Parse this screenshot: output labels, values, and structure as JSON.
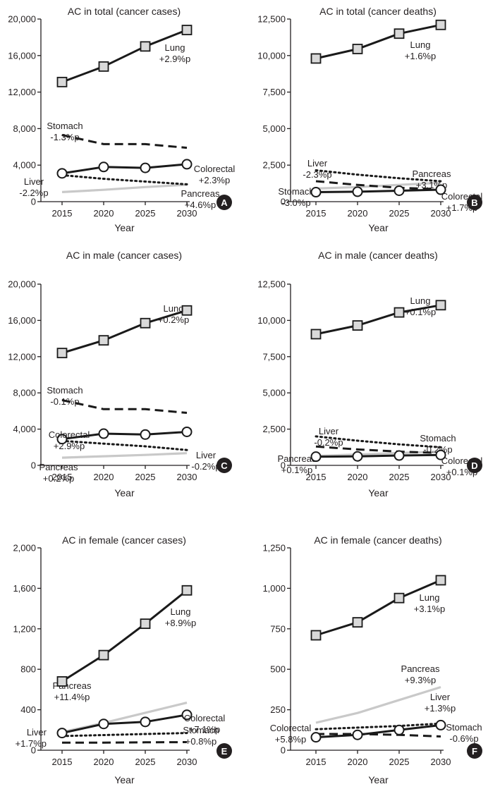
{
  "chart_data": [
    {
      "panel": "A",
      "type": "line",
      "title": "AC in total (cancer cases)",
      "xlabel": "Year",
      "ylabel": "",
      "x": [
        2015,
        2020,
        2025,
        2030
      ],
      "ylim": [
        0,
        20000
      ],
      "yticks": [
        0,
        4000,
        8000,
        12000,
        16000,
        20000
      ],
      "ytick_labels": [
        "0",
        "4,000",
        "8,000",
        "12,000",
        "16,000",
        "20,000"
      ],
      "series": [
        {
          "name": "Lung",
          "change": "+2.9%p",
          "style": "square",
          "values": [
            13100,
            14800,
            17000,
            18800
          ]
        },
        {
          "name": "Stomach",
          "change": "-1.3%p",
          "style": "dashed",
          "values": [
            7300,
            6300,
            6300,
            5900
          ]
        },
        {
          "name": "Colorectal",
          "change": "+2.3%p",
          "style": "circle",
          "values": [
            3100,
            3800,
            3700,
            4100
          ]
        },
        {
          "name": "Liver",
          "change": "-2.2%p",
          "style": "dotted",
          "values": [
            2900,
            2500,
            2200,
            1900
          ]
        },
        {
          "name": "Pancreas",
          "change": "+4.6%p",
          "style": "gray",
          "values": [
            1050,
            1300,
            1600,
            1850
          ]
        }
      ]
    },
    {
      "panel": "B",
      "type": "line",
      "title": "AC in total (cancer deaths)",
      "xlabel": "Year",
      "ylabel": "",
      "x": [
        2015,
        2020,
        2025,
        2030
      ],
      "ylim": [
        0,
        12500
      ],
      "yticks": [
        0,
        2500,
        5000,
        7500,
        10000,
        12500
      ],
      "ytick_labels": [
        "0",
        "2,500",
        "5,000",
        "7,500",
        "10,000",
        "12,500"
      ],
      "series": [
        {
          "name": "Lung",
          "change": "+1.6%p",
          "style": "square",
          "values": [
            9800,
            10450,
            11500,
            12100
          ]
        },
        {
          "name": "Liver",
          "change": "-2.3%p",
          "style": "dotted",
          "values": [
            2150,
            1850,
            1600,
            1400
          ]
        },
        {
          "name": "Pancreas",
          "change": "+3.1%p",
          "style": "gray",
          "values": [
            900,
            1000,
            1150,
            1300
          ]
        },
        {
          "name": "Stomach",
          "change": "-3.0%p",
          "style": "dashed",
          "values": [
            1400,
            1150,
            950,
            850
          ]
        },
        {
          "name": "Colorectal",
          "change": "+1.7%p",
          "style": "circle",
          "values": [
            650,
            680,
            750,
            820
          ]
        }
      ]
    },
    {
      "panel": "C",
      "type": "line",
      "title": "AC in male (cancer cases)",
      "xlabel": "Year",
      "ylabel": "",
      "x": [
        2015,
        2020,
        2025,
        2030
      ],
      "ylim": [
        0,
        20000
      ],
      "yticks": [
        0,
        4000,
        8000,
        12000,
        16000,
        20000
      ],
      "ytick_labels": [
        "0",
        "4,000",
        "8,000",
        "12,000",
        "16,000",
        "20,000"
      ],
      "series": [
        {
          "name": "Lung",
          "change": "+0.2%p",
          "style": "square",
          "values": [
            12400,
            13800,
            15700,
            17100
          ]
        },
        {
          "name": "Stomach",
          "change": "-0.1%p",
          "style": "dashed",
          "values": [
            7200,
            6200,
            6200,
            5800
          ]
        },
        {
          "name": "Colorectal",
          "change": "+2.9%p",
          "style": "circle",
          "values": [
            2900,
            3500,
            3400,
            3700
          ]
        },
        {
          "name": "Liver",
          "change": "-0.2%p",
          "style": "dotted",
          "values": [
            2700,
            2400,
            2100,
            1700
          ]
        },
        {
          "name": "Pancreas",
          "change": "+0.2%p",
          "style": "gray",
          "values": [
            850,
            1000,
            1150,
            1350
          ]
        }
      ]
    },
    {
      "panel": "D",
      "type": "line",
      "title": "AC in male (cancer deaths)",
      "xlabel": "Year",
      "ylabel": "",
      "x": [
        2015,
        2020,
        2025,
        2030
      ],
      "ylim": [
        0,
        12500
      ],
      "yticks": [
        0,
        2500,
        5000,
        7500,
        10000,
        12500
      ],
      "ytick_labels": [
        "0",
        "2,500",
        "5,000",
        "7,500",
        "10,000",
        "12,500"
      ],
      "series": [
        {
          "name": "Lung",
          "change": "+0.1%p",
          "style": "square",
          "values": [
            9050,
            9650,
            10550,
            11050
          ]
        },
        {
          "name": "Liver",
          "change": "-0.2%p",
          "style": "dotted",
          "values": [
            2000,
            1700,
            1450,
            1250
          ]
        },
        {
          "name": "Stomach",
          "change": "-0.2%p",
          "style": "dashed",
          "values": [
            1300,
            1100,
            950,
            850
          ]
        },
        {
          "name": "Pancreas",
          "change": "+0.1%p",
          "style": "gray",
          "values": [
            650,
            750,
            850,
            950
          ]
        },
        {
          "name": "Colorectal",
          "change": "+0.1%p",
          "style": "circle",
          "values": [
            600,
            620,
            680,
            720
          ]
        }
      ]
    },
    {
      "panel": "E",
      "type": "line",
      "title": "AC in female (cancer cases)",
      "xlabel": "Year",
      "ylabel": "",
      "x": [
        2015,
        2020,
        2025,
        2030
      ],
      "ylim": [
        0,
        2000
      ],
      "yticks": [
        0,
        400,
        800,
        1200,
        1600,
        2000
      ],
      "ytick_labels": [
        "0",
        "400",
        "800",
        "1,200",
        "1,600",
        "2,000"
      ],
      "series": [
        {
          "name": "Lung",
          "change": "+8.9%p",
          "style": "square",
          "values": [
            680,
            940,
            1250,
            1580
          ]
        },
        {
          "name": "Pancreas",
          "change": "+11.4%p",
          "style": "gray",
          "values": [
            180,
            270,
            370,
            470
          ]
        },
        {
          "name": "Colorectal",
          "change": "+7.1%p",
          "style": "circle",
          "values": [
            170,
            260,
            280,
            350
          ]
        },
        {
          "name": "Liver",
          "change": "+1.7%p",
          "style": "dotted",
          "values": [
            140,
            150,
            160,
            170
          ]
        },
        {
          "name": "Stomach",
          "change": "+0.8%p",
          "style": "dashed",
          "values": [
            75,
            75,
            78,
            80
          ]
        }
      ]
    },
    {
      "panel": "F",
      "type": "line",
      "title": "AC in female (cancer deaths)",
      "xlabel": "Year",
      "ylabel": "",
      "x": [
        2015,
        2020,
        2025,
        2030
      ],
      "ylim": [
        0,
        1250
      ],
      "yticks": [
        0,
        250,
        500,
        750,
        1000,
        1250
      ],
      "ytick_labels": [
        "0",
        "250",
        "500",
        "750",
        "1,000",
        "1,250"
      ],
      "series": [
        {
          "name": "Lung",
          "change": "+3.1%p",
          "style": "square",
          "values": [
            710,
            790,
            940,
            1050
          ]
        },
        {
          "name": "Pancreas",
          "change": "+9.3%p",
          "style": "gray",
          "values": [
            170,
            230,
            310,
            390
          ]
        },
        {
          "name": "Liver",
          "change": "+1.3%p",
          "style": "dotted",
          "values": [
            130,
            140,
            150,
            165
          ]
        },
        {
          "name": "Colorectal",
          "change": "+5.8%p",
          "style": "circle",
          "values": [
            80,
            95,
            125,
            155
          ]
        },
        {
          "name": "Stomach",
          "change": "-0.6%p",
          "style": "dashed",
          "values": [
            100,
            100,
            95,
            85
          ]
        }
      ]
    }
  ]
}
